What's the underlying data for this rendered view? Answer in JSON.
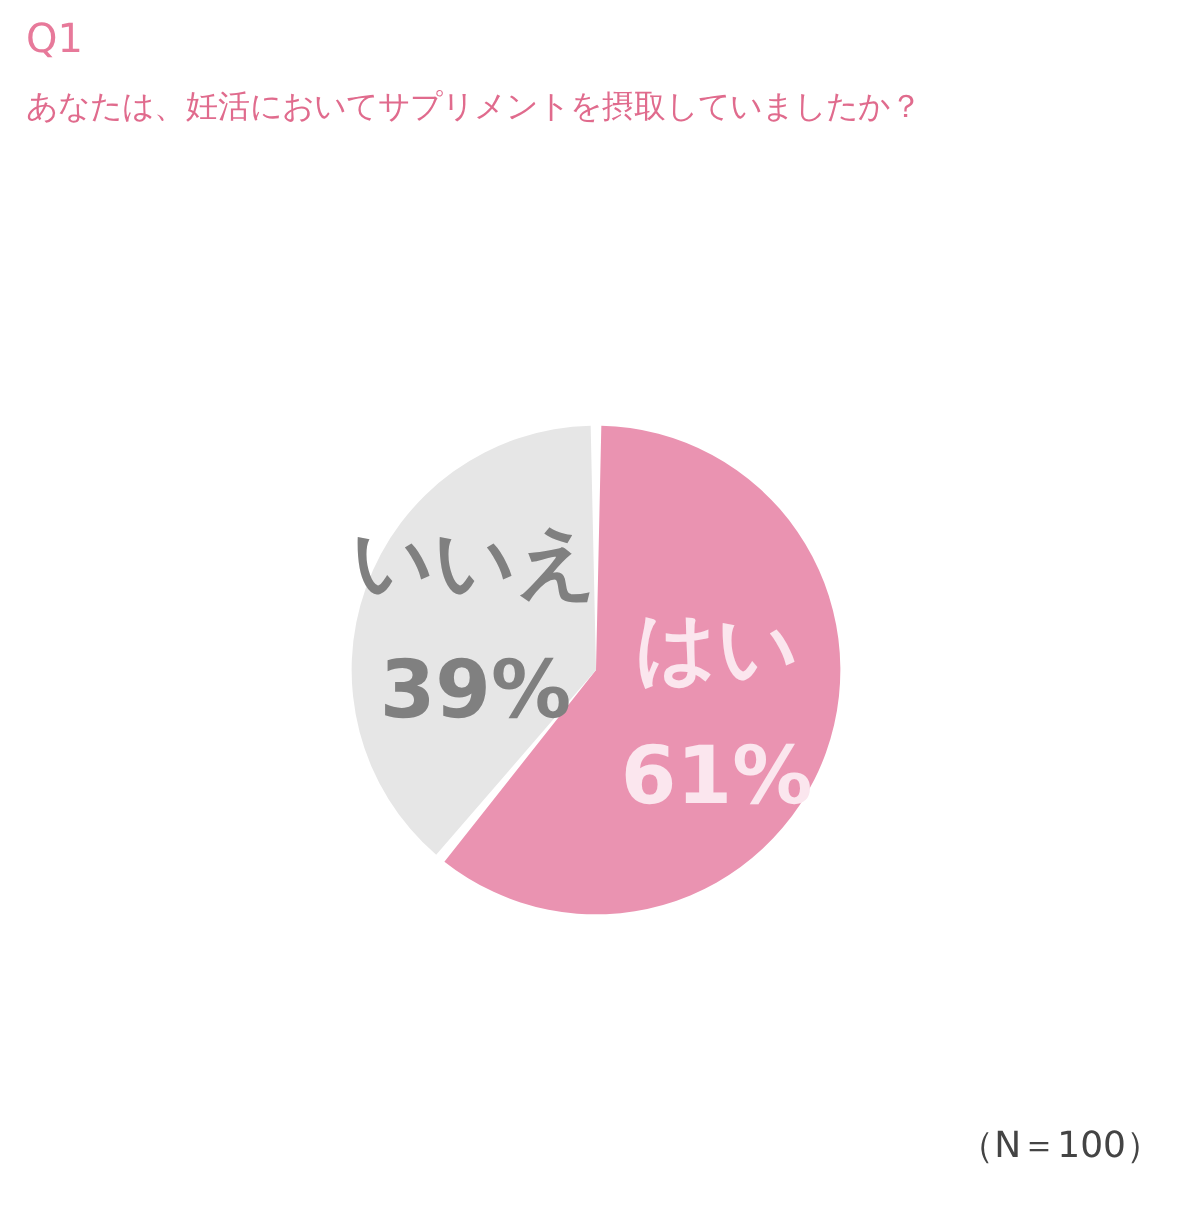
{
  "chart_data": {
    "type": "pie",
    "title": "Q1",
    "subtitle": "あなたは、妊活においてサプリメントを摂取していましたか？",
    "categories": [
      "はい",
      "いいえ"
    ],
    "values": [
      61,
      39
    ],
    "colors": [
      "#ea93b1",
      "#e6e6e6"
    ],
    "value_labels": [
      "61%",
      "39%"
    ],
    "annotations": [
      "（N＝100）"
    ],
    "legend": false
  }
}
